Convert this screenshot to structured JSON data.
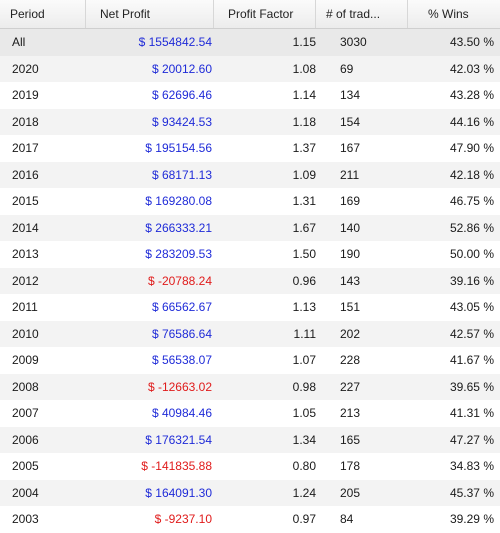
{
  "columns": [
    {
      "key": "period",
      "label": "Period"
    },
    {
      "key": "net_profit",
      "label": "Net Profit"
    },
    {
      "key": "profit_factor",
      "label": "Profit Factor"
    },
    {
      "key": "trades",
      "label": "# of trad..."
    },
    {
      "key": "wins",
      "label": "% Wins"
    }
  ],
  "rows": [
    {
      "period": "All",
      "net_profit": "$ 1554842.54",
      "profit_factor": "1.15",
      "trades": "3030",
      "wins": "43.50 %",
      "sign": "pos"
    },
    {
      "period": "2020",
      "net_profit": "$ 20012.60",
      "profit_factor": "1.08",
      "trades": "69",
      "wins": "42.03 %",
      "sign": "pos"
    },
    {
      "period": "2019",
      "net_profit": "$ 62696.46",
      "profit_factor": "1.14",
      "trades": "134",
      "wins": "43.28 %",
      "sign": "pos"
    },
    {
      "period": "2018",
      "net_profit": "$ 93424.53",
      "profit_factor": "1.18",
      "trades": "154",
      "wins": "44.16 %",
      "sign": "pos"
    },
    {
      "period": "2017",
      "net_profit": "$ 195154.56",
      "profit_factor": "1.37",
      "trades": "167",
      "wins": "47.90 %",
      "sign": "pos"
    },
    {
      "period": "2016",
      "net_profit": "$ 68171.13",
      "profit_factor": "1.09",
      "trades": "211",
      "wins": "42.18 %",
      "sign": "pos"
    },
    {
      "period": "2015",
      "net_profit": "$ 169280.08",
      "profit_factor": "1.31",
      "trades": "169",
      "wins": "46.75 %",
      "sign": "pos"
    },
    {
      "period": "2014",
      "net_profit": "$ 266333.21",
      "profit_factor": "1.67",
      "trades": "140",
      "wins": "52.86 %",
      "sign": "pos"
    },
    {
      "period": "2013",
      "net_profit": "$ 283209.53",
      "profit_factor": "1.50",
      "trades": "190",
      "wins": "50.00 %",
      "sign": "pos"
    },
    {
      "period": "2012",
      "net_profit": "$ -20788.24",
      "profit_factor": "0.96",
      "trades": "143",
      "wins": "39.16 %",
      "sign": "neg"
    },
    {
      "period": "2011",
      "net_profit": "$ 66562.67",
      "profit_factor": "1.13",
      "trades": "151",
      "wins": "43.05 %",
      "sign": "pos"
    },
    {
      "period": "2010",
      "net_profit": "$ 76586.64",
      "profit_factor": "1.11",
      "trades": "202",
      "wins": "42.57 %",
      "sign": "pos"
    },
    {
      "period": "2009",
      "net_profit": "$ 56538.07",
      "profit_factor": "1.07",
      "trades": "228",
      "wins": "41.67 %",
      "sign": "pos"
    },
    {
      "period": "2008",
      "net_profit": "$ -12663.02",
      "profit_factor": "0.98",
      "trades": "227",
      "wins": "39.65 %",
      "sign": "neg"
    },
    {
      "period": "2007",
      "net_profit": "$ 40984.46",
      "profit_factor": "1.05",
      "trades": "213",
      "wins": "41.31 %",
      "sign": "pos"
    },
    {
      "period": "2006",
      "net_profit": "$ 176321.54",
      "profit_factor": "1.34",
      "trades": "165",
      "wins": "47.27 %",
      "sign": "pos"
    },
    {
      "period": "2005",
      "net_profit": "$ -141835.88",
      "profit_factor": "0.80",
      "trades": "178",
      "wins": "34.83 %",
      "sign": "neg"
    },
    {
      "period": "2004",
      "net_profit": "$ 164091.30",
      "profit_factor": "1.24",
      "trades": "205",
      "wins": "45.37 %",
      "sign": "pos"
    },
    {
      "period": "2003",
      "net_profit": "$ -9237.10",
      "profit_factor": "0.97",
      "trades": "84",
      "wins": "39.29 %",
      "sign": "neg"
    }
  ],
  "colors": {
    "positive": "#1f2bd8",
    "negative": "#e01b1b"
  }
}
